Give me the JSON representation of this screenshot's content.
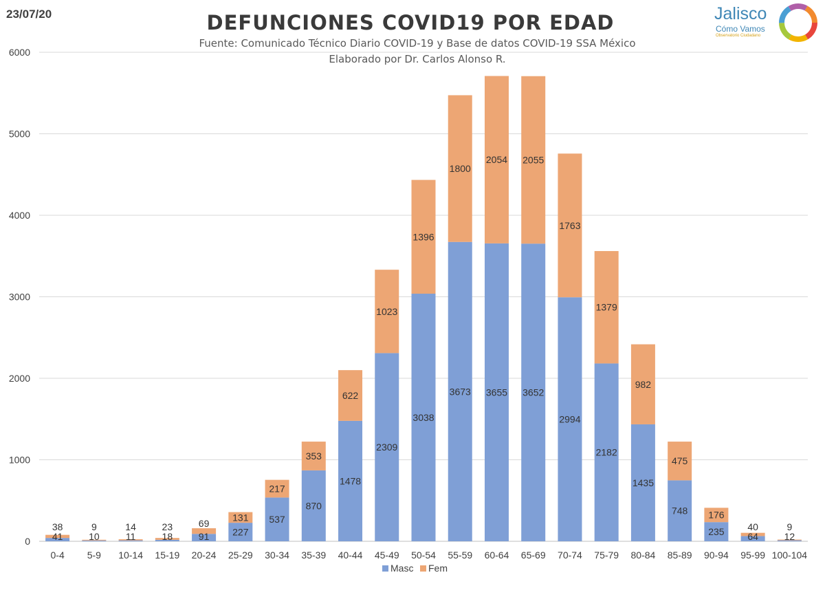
{
  "header": {
    "date": "23/07/20",
    "logo_name": "Jalisco",
    "logo_tagline": "Cómo Vamos",
    "logo_subtitle": "Observatorio Ciudadano"
  },
  "colors": {
    "masc": "#7f9fd6",
    "fem": "#eda674",
    "grid": "#d9d9d9",
    "text": "#333333"
  },
  "chart_data": {
    "type": "bar",
    "stacked": true,
    "title": "DEFUNCIONES COVID19 POR EDAD",
    "subtitle": "Fuente: Comunicado Técnico Diario COVID-19 y Base de datos COVID-19 SSA México",
    "subtitle2": "Elaborado por Dr. Carlos Alonso R.",
    "xlabel": "",
    "ylabel": "",
    "ylim": [
      0,
      6000
    ],
    "yticks": [
      0,
      1000,
      2000,
      3000,
      4000,
      5000,
      6000
    ],
    "grid": true,
    "legend_position": "bottom",
    "categories": [
      "0-4",
      "5-9",
      "10-14",
      "15-19",
      "20-24",
      "25-29",
      "30-34",
      "35-39",
      "40-44",
      "45-49",
      "50-54",
      "55-59",
      "60-64",
      "65-69",
      "70-74",
      "75-79",
      "80-84",
      "85-89",
      "90-94",
      "95-99",
      "100-104"
    ],
    "series": [
      {
        "name": "Masc",
        "values": [
          41,
          10,
          11,
          18,
          91,
          227,
          537,
          870,
          1478,
          2309,
          3038,
          3673,
          3655,
          3652,
          2994,
          2182,
          1435,
          748,
          235,
          64,
          12
        ]
      },
      {
        "name": "Fem",
        "values": [
          38,
          9,
          14,
          23,
          69,
          131,
          217,
          353,
          622,
          1023,
          1396,
          1800,
          2054,
          2055,
          1763,
          1379,
          982,
          475,
          176,
          40,
          9
        ]
      }
    ]
  }
}
